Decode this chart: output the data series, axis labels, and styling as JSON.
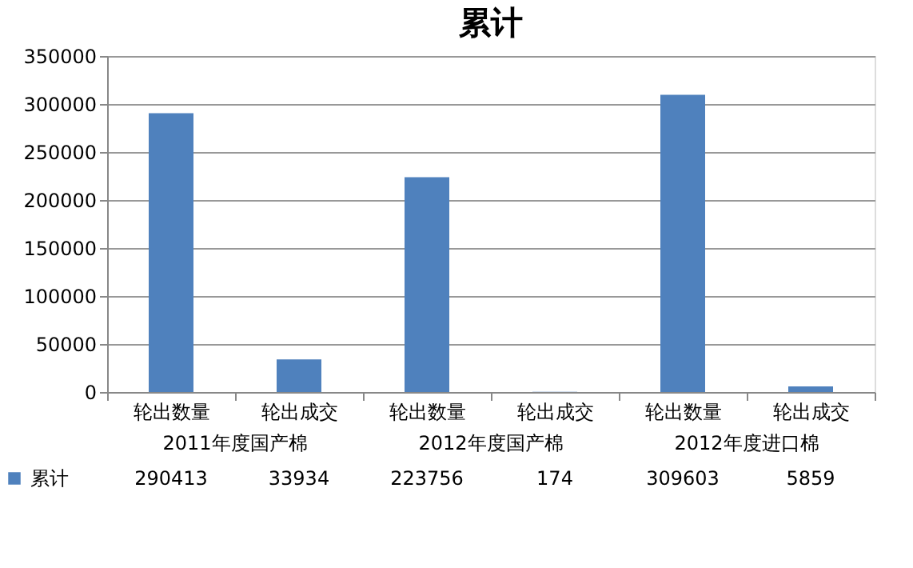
{
  "chart_data": {
    "type": "bar",
    "title": "累计",
    "categories": [
      "轮出数量",
      "轮出成交",
      "轮出数量",
      "轮出成交",
      "轮出数量",
      "轮出成交"
    ],
    "annotations": [
      "2011年度国产棉",
      "2012年度国产棉",
      "2012年度进口棉"
    ],
    "series": [
      {
        "name": "累计",
        "color": "#4f81bd",
        "values": [
          290413,
          33934,
          223756,
          174,
          309603,
          5859
        ]
      }
    ],
    "ylim": [
      0,
      350000
    ],
    "yticks": [
      0,
      50000,
      100000,
      150000,
      200000,
      250000,
      300000,
      350000
    ],
    "grid": "y",
    "legend": "bottom",
    "data_labels": true
  }
}
